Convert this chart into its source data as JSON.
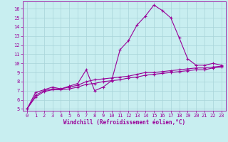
{
  "title": "",
  "xlabel": "Windchill (Refroidissement éolien,°C)",
  "ylabel": "",
  "bg_color": "#c8eef0",
  "grid_color": "#a8d4d8",
  "line_color": "#990099",
  "xlim": [
    -0.5,
    23.5
  ],
  "ylim": [
    4.8,
    16.8
  ],
  "yticks": [
    5,
    6,
    7,
    8,
    9,
    10,
    11,
    12,
    13,
    14,
    15,
    16
  ],
  "xticks": [
    0,
    1,
    2,
    3,
    4,
    5,
    6,
    7,
    8,
    9,
    10,
    11,
    12,
    13,
    14,
    15,
    16,
    17,
    18,
    19,
    20,
    21,
    22,
    23
  ],
  "curve1_x": [
    0,
    1,
    2,
    3,
    4,
    5,
    6,
    7,
    8,
    9,
    10,
    11,
    12,
    13,
    14,
    15,
    16,
    17,
    18,
    19,
    20,
    21,
    22,
    23
  ],
  "curve1_y": [
    5.0,
    6.8,
    7.1,
    7.4,
    7.2,
    7.5,
    7.8,
    9.3,
    7.0,
    7.4,
    8.1,
    11.5,
    12.5,
    14.2,
    15.2,
    16.4,
    15.8,
    15.0,
    12.8,
    10.5,
    9.8,
    9.8,
    10.0,
    9.8
  ],
  "curve2_x": [
    0,
    1,
    2,
    3,
    4,
    5,
    6,
    7,
    8,
    9,
    10,
    11,
    12,
    13,
    14,
    15,
    16,
    17,
    18,
    19,
    20,
    21,
    22,
    23
  ],
  "curve2_y": [
    5.0,
    6.5,
    7.0,
    7.2,
    7.2,
    7.4,
    7.6,
    8.0,
    8.2,
    8.3,
    8.4,
    8.5,
    8.6,
    8.8,
    9.0,
    9.0,
    9.1,
    9.2,
    9.3,
    9.4,
    9.5,
    9.5,
    9.6,
    9.7
  ],
  "curve3_x": [
    0,
    1,
    2,
    3,
    4,
    5,
    6,
    7,
    8,
    9,
    10,
    11,
    12,
    13,
    14,
    15,
    16,
    17,
    18,
    19,
    20,
    21,
    22,
    23
  ],
  "curve3_y": [
    5.0,
    6.3,
    6.9,
    7.1,
    7.1,
    7.2,
    7.4,
    7.7,
    7.8,
    8.0,
    8.1,
    8.2,
    8.4,
    8.5,
    8.7,
    8.8,
    8.9,
    9.0,
    9.1,
    9.2,
    9.3,
    9.3,
    9.5,
    9.6
  ],
  "tick_fontsize": 5,
  "xlabel_fontsize": 5.5,
  "linewidth": 0.8,
  "markersize": 3
}
